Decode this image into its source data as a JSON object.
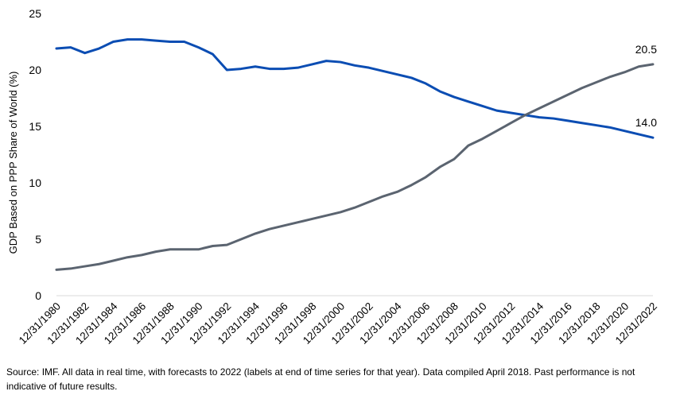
{
  "chart_data": {
    "type": "line",
    "ylabel": "GDP Based on PPP Share of World (%)",
    "ylim": [
      0,
      25
    ],
    "yticks": [
      0,
      5,
      10,
      15,
      20,
      25
    ],
    "x_tick_labels": [
      "12/31/1980",
      "12/31/1982",
      "12/31/1984",
      "12/31/1986",
      "12/31/1988",
      "12/31/1990",
      "12/31/1992",
      "12/31/1994",
      "12/31/1996",
      "12/31/1998",
      "12/31/2000",
      "12/31/2002",
      "12/31/2004",
      "12/31/2006",
      "12/31/2008",
      "12/31/2010",
      "12/31/2012",
      "12/31/2014",
      "12/31/2016",
      "12/31/2018",
      "12/31/2020",
      "12/31/2022"
    ],
    "x": [
      "12/31/1980",
      "12/31/1981",
      "12/31/1982",
      "12/31/1983",
      "12/31/1984",
      "12/31/1985",
      "12/31/1986",
      "12/31/1987",
      "12/31/1988",
      "12/31/1989",
      "12/31/1990",
      "12/31/1991",
      "12/31/1992",
      "12/31/1993",
      "12/31/1994",
      "12/31/1995",
      "12/31/1996",
      "12/31/1997",
      "12/31/1998",
      "12/31/1999",
      "12/31/2000",
      "12/31/2001",
      "12/31/2002",
      "12/31/2003",
      "12/31/2004",
      "12/31/2005",
      "12/31/2006",
      "12/31/2007",
      "12/31/2008",
      "12/31/2009",
      "12/31/2010",
      "12/31/2011",
      "12/31/2012",
      "12/31/2013",
      "12/31/2014",
      "12/31/2015",
      "12/31/2016",
      "12/31/2017",
      "12/31/2018",
      "12/31/2019",
      "12/31/2020",
      "12/31/2021",
      "12/31/2022"
    ],
    "grid": false,
    "legend": "none",
    "series": [
      {
        "color": "#0B4DB3",
        "end_label": "14.0",
        "values": [
          21.9,
          22.0,
          21.5,
          21.9,
          22.5,
          22.7,
          22.7,
          22.6,
          22.5,
          22.5,
          22.0,
          21.4,
          20.0,
          20.1,
          20.3,
          20.1,
          20.1,
          20.2,
          20.5,
          20.8,
          20.7,
          20.4,
          20.2,
          19.9,
          19.6,
          19.3,
          18.8,
          18.1,
          17.6,
          17.2,
          16.8,
          16.4,
          16.2,
          16.0,
          15.8,
          15.7,
          15.5,
          15.3,
          15.1,
          14.9,
          14.6,
          14.3,
          14.0
        ]
      },
      {
        "color": "#5B6470",
        "end_label": "20.5",
        "values": [
          2.3,
          2.4,
          2.6,
          2.8,
          3.1,
          3.4,
          3.6,
          3.9,
          4.1,
          4.1,
          4.1,
          4.4,
          4.5,
          5.0,
          5.5,
          5.9,
          6.2,
          6.5,
          6.8,
          7.1,
          7.4,
          7.8,
          8.3,
          8.8,
          9.2,
          9.8,
          10.5,
          11.4,
          12.1,
          13.3,
          13.9,
          14.6,
          15.3,
          16.0,
          16.6,
          17.2,
          17.8,
          18.4,
          18.9,
          19.4,
          19.8,
          20.3,
          20.5
        ]
      }
    ]
  },
  "source_note": "Source: IMF. All data in real time, with forecasts to 2022 (labels at end of time series for that year). Data compiled April 2018. Past performance is not indicative of future results."
}
